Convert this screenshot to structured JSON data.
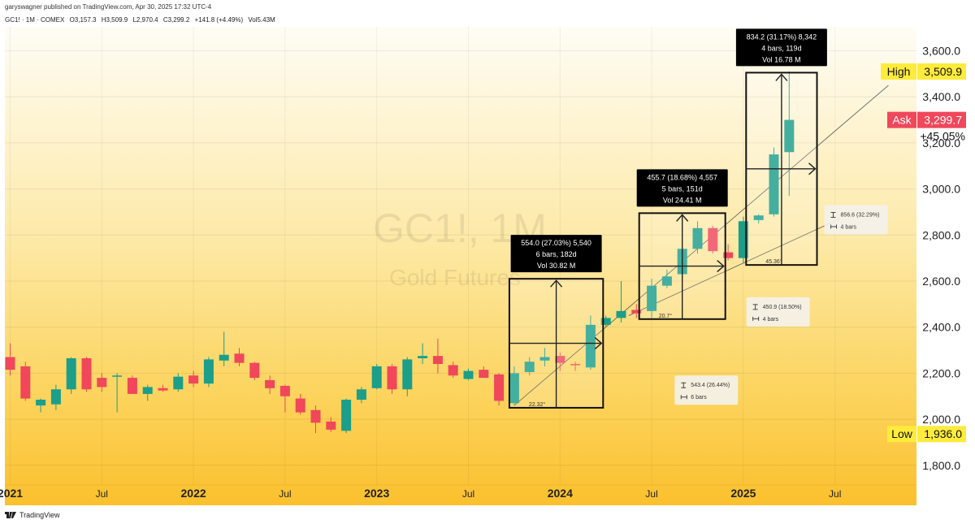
{
  "header": {
    "published": "garyswagner published on TradingView.com, Apr 30, 2025 17:32 UTC-4",
    "symbol": "GC1! · 1M · COMEX",
    "ohlc": {
      "o": "O3,157.3",
      "h": "H3,509.9",
      "l": "L2,970.4",
      "c": "C3,299.2",
      "chg": "+141.8 (+4.49%)",
      "vol": "Vol5.43M"
    }
  },
  "watermark": {
    "symbol": "GC1!, 1M",
    "name": "Gold Futures"
  },
  "footer": {
    "brand": "TradingView"
  },
  "colors": {
    "up": "#1b9e8a",
    "down": "#f0475b",
    "bg_top": "#fefdf6",
    "bg_bottom": "#fbc02d",
    "high_badge": "#ffeb3b",
    "ask_badge": "#f0475b"
  },
  "chart_data": {
    "type": "candlestick",
    "timeframe": "1M",
    "ylim": [
      1730,
      3700
    ],
    "price_ticks": [
      1800,
      2000,
      2200,
      2400,
      2600,
      2800,
      3000,
      3200,
      3400,
      3600
    ],
    "price_tick_labels": [
      "1,800.0",
      "2,000.0",
      "2,200.0",
      "2,400.0",
      "2,600.0",
      "2,800.0",
      "3,000.0",
      "3,200.0",
      "3,400.0",
      "3,600.0"
    ],
    "time_ticks": [
      {
        "i": 0,
        "label": "2021",
        "major": true
      },
      {
        "i": 6,
        "label": "Jul",
        "major": false
      },
      {
        "i": 12,
        "label": "2022",
        "major": true
      },
      {
        "i": 18,
        "label": "Jul",
        "major": false
      },
      {
        "i": 24,
        "label": "2023",
        "major": true
      },
      {
        "i": 30,
        "label": "Jul",
        "major": false
      },
      {
        "i": 36,
        "label": "2024",
        "major": true
      },
      {
        "i": 42,
        "label": "Jul",
        "major": false
      },
      {
        "i": 48,
        "label": "2025",
        "major": true
      },
      {
        "i": 54,
        "label": "Jul",
        "major": false
      }
    ],
    "candles": [
      {
        "i": 0,
        "o": 2270,
        "h": 2330,
        "l": 2190,
        "c": 2215
      },
      {
        "i": 1,
        "o": 2230,
        "h": 2250,
        "l": 2080,
        "c": 2090
      },
      {
        "i": 2,
        "o": 2060,
        "h": 2090,
        "l": 2030,
        "c": 2085
      },
      {
        "i": 3,
        "o": 2065,
        "h": 2150,
        "l": 2040,
        "c": 2130
      },
      {
        "i": 4,
        "o": 2130,
        "h": 2270,
        "l": 2110,
        "c": 2265
      },
      {
        "i": 5,
        "o": 2265,
        "h": 2270,
        "l": 2120,
        "c": 2130
      },
      {
        "i": 6,
        "o": 2180,
        "h": 2200,
        "l": 2120,
        "c": 2140
      },
      {
        "i": 7,
        "o": 2190,
        "h": 2200,
        "l": 2030,
        "c": 2190
      },
      {
        "i": 8,
        "o": 2180,
        "h": 2190,
        "l": 2110,
        "c": 2110
      },
      {
        "i": 9,
        "o": 2110,
        "h": 2150,
        "l": 2080,
        "c": 2140
      },
      {
        "i": 10,
        "o": 2135,
        "h": 2150,
        "l": 2120,
        "c": 2125
      },
      {
        "i": 11,
        "o": 2130,
        "h": 2200,
        "l": 2120,
        "c": 2185
      },
      {
        "i": 12,
        "o": 2190,
        "h": 2210,
        "l": 2140,
        "c": 2155
      },
      {
        "i": 13,
        "o": 2155,
        "h": 2270,
        "l": 2140,
        "c": 2260
      },
      {
        "i": 14,
        "o": 2255,
        "h": 2380,
        "l": 2230,
        "c": 2280
      },
      {
        "i": 15,
        "o": 2285,
        "h": 2310,
        "l": 2230,
        "c": 2245
      },
      {
        "i": 16,
        "o": 2245,
        "h": 2250,
        "l": 2170,
        "c": 2180
      },
      {
        "i": 17,
        "o": 2170,
        "h": 2190,
        "l": 2110,
        "c": 2135
      },
      {
        "i": 18,
        "o": 2145,
        "h": 2150,
        "l": 2030,
        "c": 2100
      },
      {
        "i": 19,
        "o": 2090,
        "h": 2110,
        "l": 2020,
        "c": 2030
      },
      {
        "i": 20,
        "o": 2040,
        "h": 2060,
        "l": 1940,
        "c": 1985
      },
      {
        "i": 21,
        "o": 1990,
        "h": 2010,
        "l": 1945,
        "c": 1955
      },
      {
        "i": 22,
        "o": 1950,
        "h": 2090,
        "l": 1940,
        "c": 2085
      },
      {
        "i": 23,
        "o": 2085,
        "h": 2140,
        "l": 2070,
        "c": 2130
      },
      {
        "i": 24,
        "o": 2135,
        "h": 2240,
        "l": 2130,
        "c": 2230
      },
      {
        "i": 25,
        "o": 2230,
        "h": 2240,
        "l": 2110,
        "c": 2130
      },
      {
        "i": 26,
        "o": 2130,
        "h": 2270,
        "l": 2100,
        "c": 2260
      },
      {
        "i": 27,
        "o": 2265,
        "h": 2330,
        "l": 2240,
        "c": 2275
      },
      {
        "i": 28,
        "o": 2275,
        "h": 2350,
        "l": 2200,
        "c": 2240
      },
      {
        "i": 29,
        "o": 2235,
        "h": 2250,
        "l": 2180,
        "c": 2190
      },
      {
        "i": 30,
        "o": 2175,
        "h": 2220,
        "l": 2170,
        "c": 2210
      },
      {
        "i": 31,
        "o": 2215,
        "h": 2230,
        "l": 2180,
        "c": 2180
      },
      {
        "i": 32,
        "o": 2195,
        "h": 2200,
        "l": 2060,
        "c": 2080
      },
      {
        "i": 33,
        "o": 2070,
        "h": 2230,
        "l": 2060,
        "c": 2200
      },
      {
        "i": 34,
        "o": 2205,
        "h": 2270,
        "l": 2190,
        "c": 2250
      },
      {
        "i": 35,
        "o": 2255,
        "h": 2310,
        "l": 2230,
        "c": 2270
      },
      {
        "i": 36,
        "o": 2275,
        "h": 2290,
        "l": 2210,
        "c": 2245
      },
      {
        "i": 37,
        "o": 2240,
        "h": 2250,
        "l": 2210,
        "c": 2235
      },
      {
        "i": 38,
        "o": 2225,
        "h": 2450,
        "l": 2215,
        "c": 2410
      },
      {
        "i": 39,
        "o": 2410,
        "h": 2450,
        "l": 2400,
        "c": 2440
      },
      {
        "i": 40,
        "o": 2440,
        "h": 2600,
        "l": 2420,
        "c": 2470
      },
      {
        "i": 41,
        "o": 2475,
        "h": 2500,
        "l": 2440,
        "c": 2460
      },
      {
        "i": 42,
        "o": 2470,
        "h": 2610,
        "l": 2440,
        "c": 2580
      },
      {
        "i": 43,
        "o": 2580,
        "h": 2650,
        "l": 2570,
        "c": 2620
      },
      {
        "i": 44,
        "o": 2630,
        "h": 2750,
        "l": 2600,
        "c": 2740
      },
      {
        "i": 45,
        "o": 2740,
        "h": 2860,
        "l": 2720,
        "c": 2830
      },
      {
        "i": 46,
        "o": 2830,
        "h": 2840,
        "l": 2720,
        "c": 2730
      },
      {
        "i": 47,
        "o": 2725,
        "h": 2760,
        "l": 2690,
        "c": 2700
      },
      {
        "i": 48,
        "o": 2700,
        "h": 2880,
        "l": 2680,
        "c": 2860
      },
      {
        "i": 49,
        "o": 2865,
        "h": 2890,
        "l": 2850,
        "c": 2885
      },
      {
        "i": 50,
        "o": 2890,
        "h": 3180,
        "l": 2880,
        "c": 3150
      },
      {
        "i": 51,
        "o": 3160,
        "h": 3510,
        "l": 2970,
        "c": 3300
      }
    ],
    "price_badges": [
      {
        "label": "High",
        "value": "3,509.9",
        "price": 3509.9,
        "style": "yellow"
      },
      {
        "label": "Ask",
        "value": "3,299.7",
        "price": 3299.7,
        "style": "red"
      },
      {
        "label": "Low",
        "value": "1,936.0",
        "price": 1936.0,
        "style": "yellow"
      }
    ],
    "percent_label": "+45.05%",
    "measure_boxes": [
      {
        "i0": 33,
        "i1": 38.5,
        "p0": 2050,
        "p1": 2610,
        "text": [
          "554.0 (27.03%) 5,540",
          "6 bars, 182d",
          "Vol 30.82 M"
        ],
        "angle": "22.32°"
      },
      {
        "i0": 41.5,
        "i1": 46.5,
        "p0": 2435,
        "p1": 2895,
        "text": [
          "455.7 (18.68%) 4,557",
          "5 bars, 151d",
          "Vol 24.41 M"
        ],
        "angle": "20.7°"
      },
      {
        "i0": 48.5,
        "i1": 52.5,
        "p0": 2670,
        "p1": 3505,
        "text": [
          "834.2 (31.17%) 8,342",
          "4 bars, 119d",
          "Vol 16.78 M"
        ],
        "angle": "45.36°"
      }
    ],
    "info_boxes": [
      {
        "anchor_i": 43.5,
        "anchor_p": 2190,
        "line1": "543.4 (26.44%)",
        "line2": "6 bars"
      },
      {
        "anchor_i": 48.2,
        "anchor_p": 2530,
        "line1": "450.9 (18.50%)",
        "line2": "4 bars"
      },
      {
        "anchor_i": 53.3,
        "anchor_p": 2930,
        "line1": "856.6 (32.29%)",
        "line2": "4 bars"
      }
    ],
    "trendlines": [
      {
        "i0": 33,
        "p0": 2060,
        "i1": 57.5,
        "p1": 3450
      },
      {
        "i0": 40.5,
        "p0": 2450,
        "i1": 54.3,
        "p1": 2870
      }
    ]
  }
}
